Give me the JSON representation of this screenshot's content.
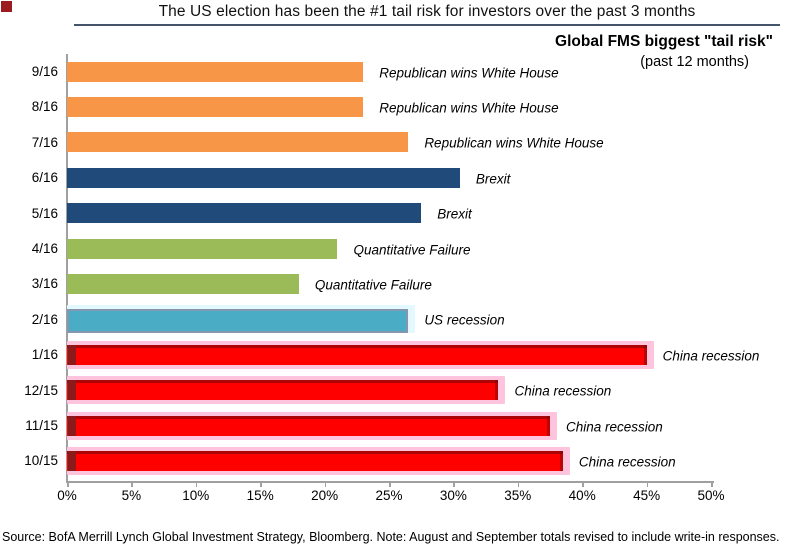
{
  "page": {
    "title": "The US election has been the #1 tail risk for investors over the past 3 months",
    "source_note": "Source: BofA Merrill Lynch Global Investment Strategy, Bloomberg. Note: August and September totals revised to include write-in responses."
  },
  "chart_data": {
    "type": "bar",
    "orientation": "horizontal",
    "title": "Global FMS biggest \"tail risk\"",
    "subtitle": "(past 12 months)",
    "xlabel": "",
    "ylabel": "",
    "xlim": [
      0,
      50
    ],
    "x_tick_step": 5,
    "x_tick_labels": [
      "0%",
      "5%",
      "10%",
      "15%",
      "20%",
      "25%",
      "30%",
      "35%",
      "40%",
      "45%",
      "50%"
    ],
    "grid": false,
    "legend": "none",
    "categories": [
      "9/16",
      "8/16",
      "7/16",
      "6/16",
      "5/16",
      "4/16",
      "3/16",
      "2/16",
      "1/16",
      "12/15",
      "11/15",
      "10/15"
    ],
    "values": [
      23,
      23,
      26.5,
      30.5,
      27.5,
      21,
      18,
      26.5,
      45,
      33.5,
      37.5,
      38.5
    ],
    "labels": [
      "Republican wins White House",
      "Republican wins White House",
      "Republican wins White House",
      "Brexit",
      "Brexit",
      "Quantitative Failure",
      "Quantitative Failure",
      "US recession",
      "China recession",
      "China recession",
      "China recession",
      "China recession"
    ],
    "colors": [
      "#f79646",
      "#f79646",
      "#f79646",
      "#1f4a7a",
      "#1f4a7a",
      "#9bbb59",
      "#9bbb59",
      "#4bacc6",
      "#fe0000",
      "#fe0000",
      "#fe0000",
      "#fe0000"
    ],
    "bar_styles": [
      "plain",
      "plain",
      "plain",
      "plain",
      "plain",
      "plain",
      "plain",
      "outlined",
      "beveled",
      "beveled",
      "beveled",
      "beveled"
    ],
    "halos": [
      null,
      null,
      null,
      null,
      null,
      null,
      null,
      "#e4f9fd",
      "#ffc4dd",
      "#ffc4dd",
      "#ffc4dd",
      "#ffc4dd"
    ],
    "accent_colors": {
      "corner_square": "#9b1b1e",
      "axis_line": "#a0a0a0",
      "title_rule": "#44546a",
      "red_bar_notch": "#8c1a1a",
      "teal_bar_border": "#8496b0"
    }
  }
}
